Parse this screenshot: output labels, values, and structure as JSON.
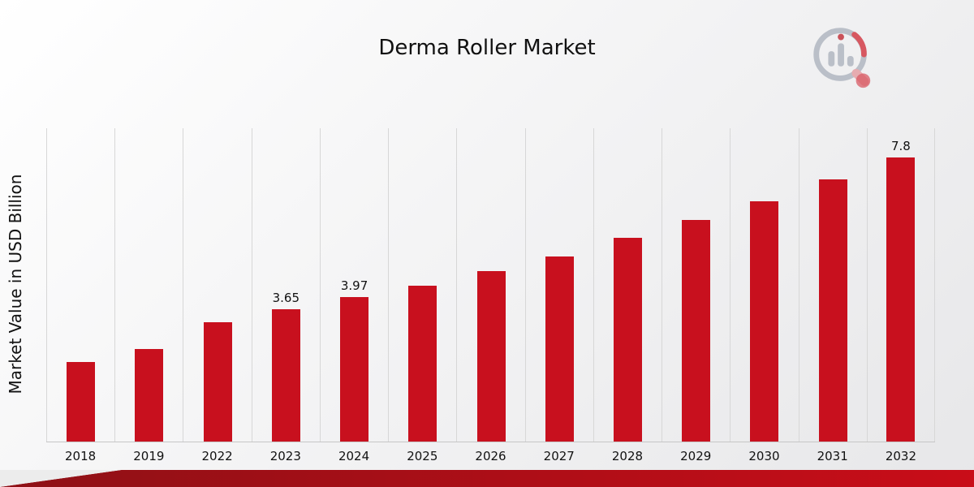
{
  "chart_data": {
    "type": "bar",
    "title": "Derma Roller Market",
    "ylabel": "Market Value in USD Billion",
    "categories": [
      "2018",
      "2019",
      "2022",
      "2023",
      "2024",
      "2025",
      "2026",
      "2027",
      "2028",
      "2029",
      "2030",
      "2031",
      "2032"
    ],
    "values": [
      2.2,
      2.55,
      3.3,
      3.65,
      3.97,
      4.3,
      4.7,
      5.1,
      5.6,
      6.1,
      6.6,
      7.2,
      7.8
    ],
    "data_labels": [
      "",
      "",
      "",
      "3.65",
      "3.97",
      "",
      "",
      "",
      "",
      "",
      "",
      "",
      "7.8"
    ],
    "ylim": [
      0,
      8.6
    ],
    "xlabel": "",
    "bar_color": "#c8101e",
    "grid": "vertical",
    "legend": "none"
  },
  "branding": {
    "logo_icon": "bar-chart-magnifier-logo",
    "accent_color": "#c90d18"
  }
}
